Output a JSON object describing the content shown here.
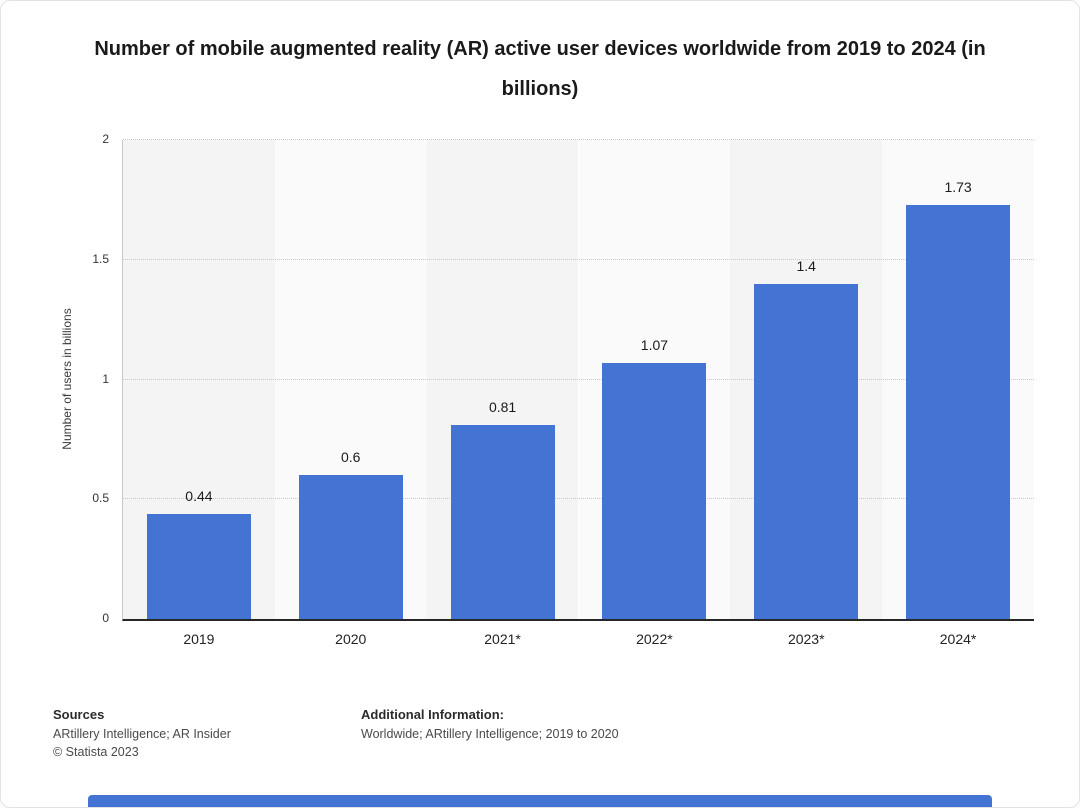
{
  "chart_data": {
    "type": "bar",
    "title": "Number of mobile augmented reality (AR) active user devices worldwide from 2019 to 2024 (in billions)",
    "categories": [
      "2019",
      "2020",
      "2021*",
      "2022*",
      "2023*",
      "2024*"
    ],
    "values": [
      0.44,
      0.6,
      0.81,
      1.07,
      1.4,
      1.73
    ],
    "value_labels": [
      "0.44",
      "0.6",
      "0.81",
      "1.07",
      "1.4",
      "1.73"
    ],
    "xlabel": "",
    "ylabel": "Number of users in billions",
    "ylim": [
      0,
      2
    ],
    "yticks": [
      0,
      0.5,
      1,
      1.5,
      2
    ],
    "bar_color": "#4374d4",
    "grid": "horizontal-dotted",
    "legend": "none"
  },
  "footer": {
    "sources_label": "Sources",
    "sources_text": "ARtillery Intelligence; AR Insider",
    "copyright": "© Statista 2023",
    "additional_label": "Additional Information:",
    "additional_text": "Worldwide; ARtillery Intelligence; 2019 to 2020"
  }
}
